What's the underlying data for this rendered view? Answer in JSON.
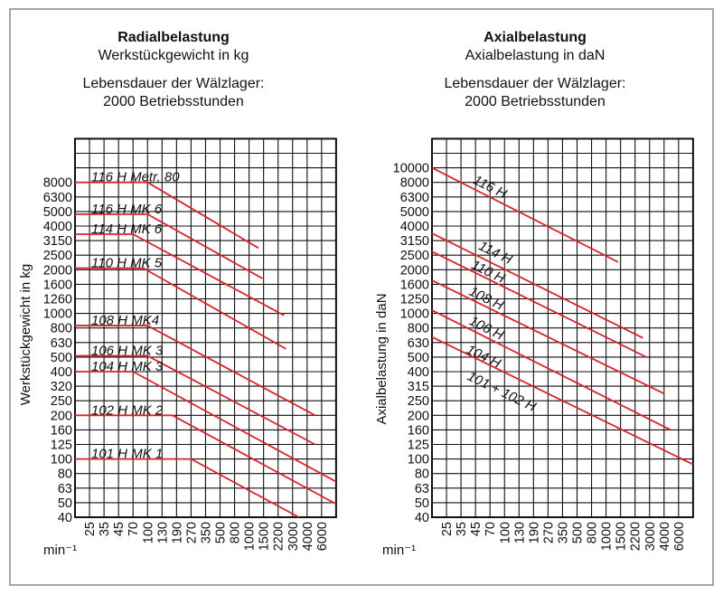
{
  "chart_data": [
    {
      "type": "line",
      "title": "Radialbelastung",
      "subtitle": "Werkstückgewicht in kg",
      "note_line1": "Lebensdauer der Wälzlager:",
      "note_line2": "2000 Betriebsstunden",
      "ylabel": "Werkstückgewicht in kg",
      "xlabel": "min⁻¹",
      "x_scale": "log",
      "y_scale": "log",
      "grid": true,
      "x_ticks": [
        "25",
        "35",
        "45",
        "70",
        "100",
        "130",
        "190",
        "270",
        "350",
        "500",
        "800",
        "1000",
        "1500",
        "2200",
        "3000",
        "4000",
        "6000"
      ],
      "y_ticks": [
        "40",
        "50",
        "63",
        "80",
        "100",
        "125",
        "160",
        "200",
        "250",
        "320",
        "400",
        "500",
        "630",
        "800",
        "1000",
        "1260",
        "1600",
        "2000",
        "2500",
        "3150",
        "4000",
        "5000",
        "6300",
        "8000"
      ],
      "line_color": "#d8242c",
      "series": [
        {
          "name": "116 H Metr. 80",
          "points": [
            [
              null,
              8000
            ],
            [
              100,
              8000
            ],
            [
              1300,
              2800
            ]
          ]
        },
        {
          "name": "116 H MK 6",
          "points": [
            [
              null,
              4800
            ],
            [
              100,
              4800
            ],
            [
              1450,
              1750
            ]
          ]
        },
        {
          "name": "114 H MK 6",
          "points": [
            [
              null,
              3500
            ],
            [
              70,
              3500
            ],
            [
              2500,
              970
            ]
          ]
        },
        {
          "name": "110 H MK 5",
          "points": [
            [
              null,
              2050
            ],
            [
              90,
              2050
            ],
            [
              2600,
              570
            ]
          ]
        },
        {
          "name": "108 H MK4",
          "points": [
            [
              null,
              830
            ],
            [
              100,
              830
            ],
            [
              5000,
              200
            ]
          ]
        },
        {
          "name": "106 H MK 3",
          "points": [
            [
              null,
              510
            ],
            [
              100,
              510
            ],
            [
              5000,
              125
            ]
          ]
        },
        {
          "name": "104 H MK 3",
          "points": [
            [
              null,
              400
            ],
            [
              70,
              400
            ],
            [
              9000,
              70
            ]
          ]
        },
        {
          "name": "102 H MK 2",
          "points": [
            [
              null,
              200
            ],
            [
              170,
              200
            ],
            [
              9000,
              49
            ]
          ]
        },
        {
          "name": "101 H MK 1",
          "points": [
            [
              null,
              100
            ],
            [
              270,
              100
            ],
            [
              3400,
              40
            ]
          ]
        }
      ]
    },
    {
      "type": "line",
      "title": "Axialbelastung",
      "subtitle": "Axialbelastung in daN",
      "note_line1": "Lebensdauer der Wälzlager:",
      "note_line2": "2000 Betriebsstunden",
      "ylabel": "Axialbelastung in daN",
      "xlabel": "min⁻¹",
      "x_scale": "log",
      "y_scale": "log",
      "grid": true,
      "x_ticks": [
        "25",
        "35",
        "45",
        "70",
        "100",
        "130",
        "190",
        "270",
        "350",
        "500",
        "800",
        "1000",
        "1500",
        "2200",
        "3000",
        "4000",
        "6000"
      ],
      "y_ticks": [
        "40",
        "50",
        "63",
        "80",
        "100",
        "125",
        "160",
        "200",
        "250",
        "315",
        "400",
        "500",
        "630",
        "800",
        "1000",
        "1250",
        "1600",
        "2000",
        "2500",
        "3150",
        "4000",
        "5000",
        "6300",
        "8000",
        "10000"
      ],
      "line_color": "#d8242c",
      "series": [
        {
          "labels": [
            "116 H"
          ],
          "points": [
            [
              null,
              10000
            ],
            [
              1400,
              2250
            ]
          ]
        },
        {
          "labels": [
            "114 H"
          ],
          "points": [
            [
              null,
              3550
            ],
            [
              2600,
              680
            ]
          ]
        },
        {
          "labels": [
            "110 H"
          ],
          "points": [
            [
              null,
              2650
            ],
            [
              2800,
              500
            ]
          ]
        },
        {
          "labels": [
            "108 H"
          ],
          "points": [
            [
              null,
              1700
            ],
            [
              4000,
              280
            ]
          ]
        },
        {
          "labels": [
            "106 H"
          ],
          "points": [
            [
              null,
              1050
            ],
            [
              4800,
              160
            ]
          ]
        },
        {
          "labels": [
            "104 H",
            "101 + 102 H"
          ],
          "points": [
            [
              null,
              690
            ],
            [
              9000,
              92
            ]
          ]
        }
      ]
    }
  ]
}
